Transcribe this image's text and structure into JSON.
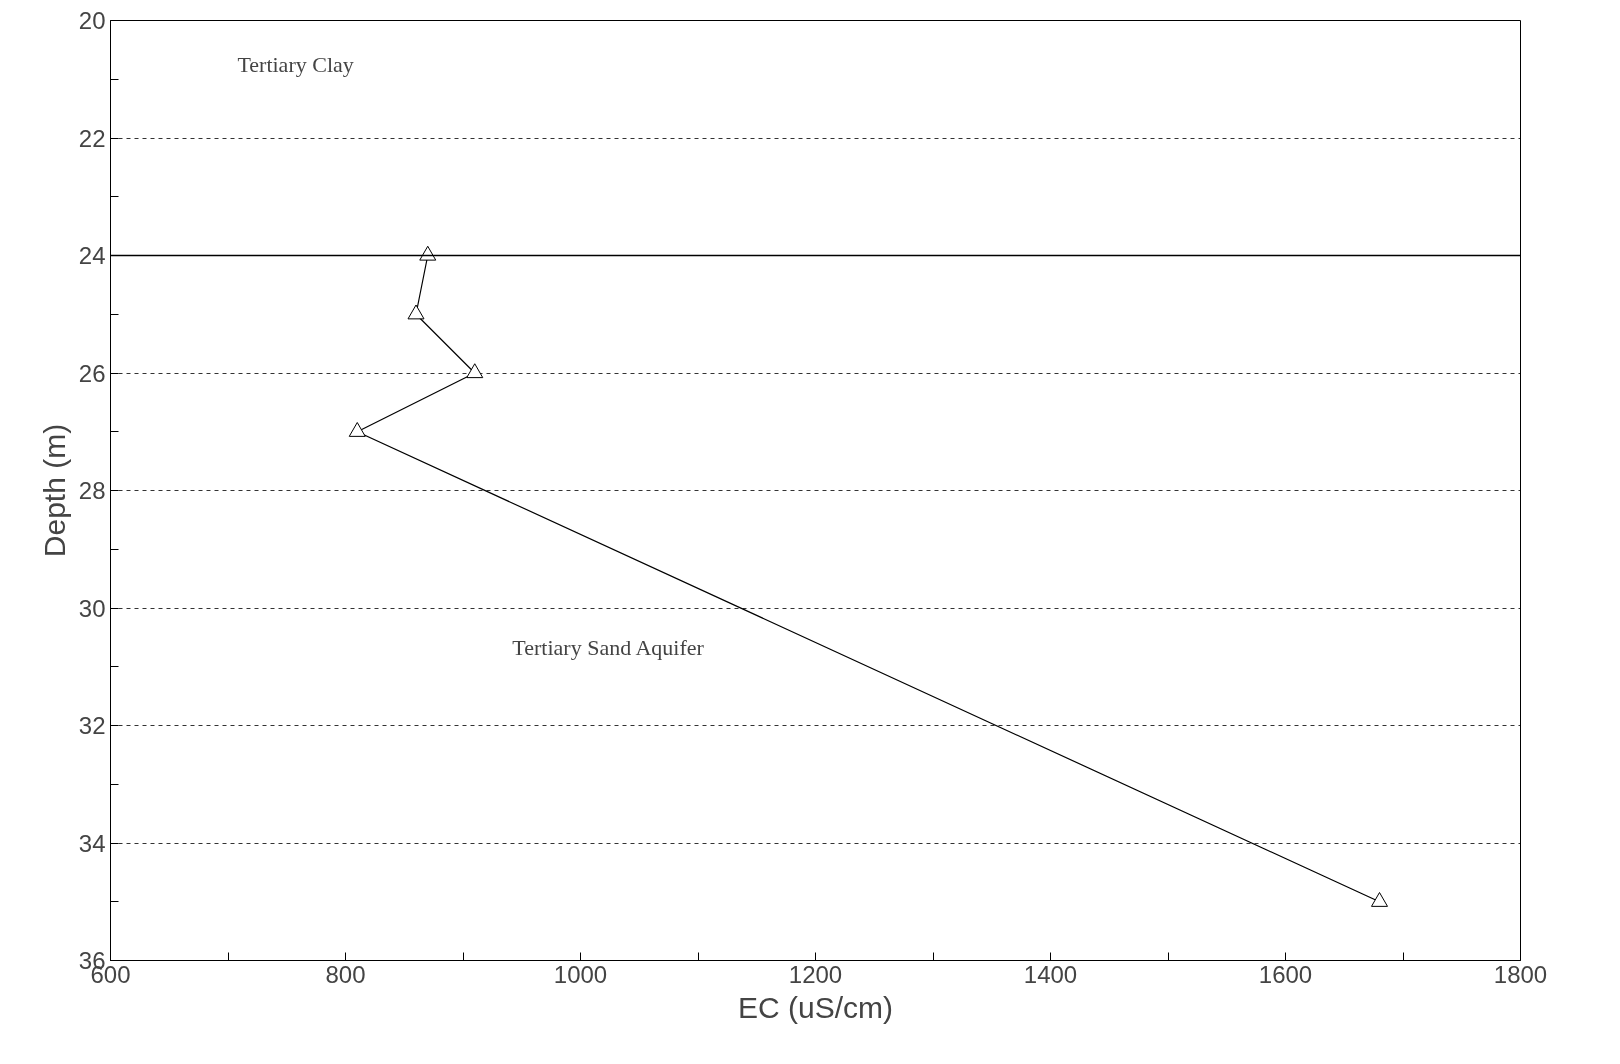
{
  "chart_data": {
    "type": "line",
    "xlabel": "EC (uS/cm)",
    "ylabel": "Depth (m)",
    "x": [
      870,
      860,
      910,
      810,
      1680
    ],
    "series": [
      {
        "color": "#000000",
        "values": [
          24,
          25,
          26,
          27,
          35
        ]
      }
    ],
    "xlim": [
      600,
      1800
    ],
    "xticks": [
      600,
      {
        "value": 700,
        "label": null
      },
      800,
      {
        "value": 900,
        "label": null
      },
      1000,
      {
        "value": 1100,
        "label": null
      },
      1200,
      {
        "value": 1300,
        "label": null
      },
      1400,
      {
        "value": 1500,
        "label": null
      },
      1600,
      {
        "value": 1700,
        "label": null
      },
      1800
    ],
    "ylim": [
      36,
      20
    ],
    "yticks": [
      20,
      {
        "value": 21,
        "label": null
      },
      22,
      {
        "value": 23,
        "label": null
      },
      24,
      {
        "value": 25,
        "label": null
      },
      26,
      {
        "value": 27,
        "label": null
      },
      28,
      {
        "value": 29,
        "label": null
      },
      30,
      {
        "value": 31,
        "label": null
      },
      32,
      {
        "value": 33,
        "label": null
      },
      34,
      {
        "value": 35,
        "label": null
      },
      36
    ],
    "grid": "y",
    "marker": "triangle",
    "line_style": "solid",
    "ref_lines": [
      {
        "axis": "y",
        "value": 24,
        "color": "#000000",
        "line_style": "solid"
      }
    ],
    "annotations": [
      "Tertiary Clay",
      "Tertiary Sand Aquifer"
    ]
  }
}
